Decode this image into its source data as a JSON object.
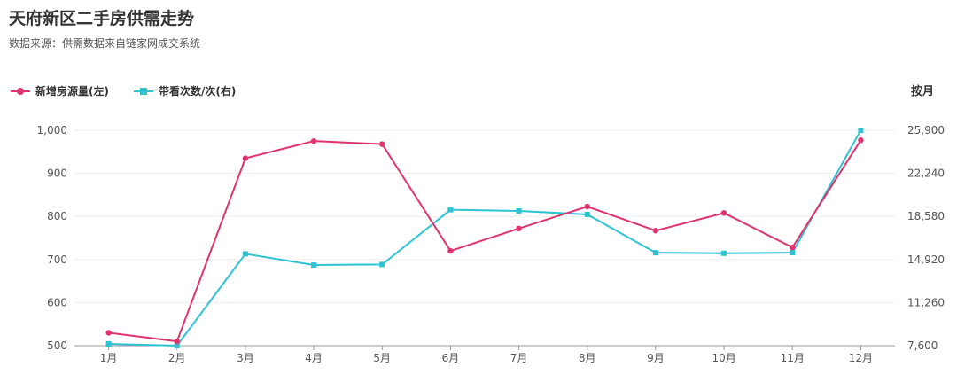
{
  "header": {
    "title": "天府新区二手房供需走势",
    "subtitle": "数据来源：供需数据来自链家网成交系统"
  },
  "period_label": "按月",
  "colors": {
    "series_new_listings": "#e0336e",
    "series_viewings": "#2ec3d3",
    "gridline": "#eeeeee",
    "axis": "#999999"
  },
  "chart_data": {
    "type": "line",
    "title": "天府新区二手房供需走势",
    "categories": [
      "1月",
      "2月",
      "3月",
      "4月",
      "5月",
      "6月",
      "7月",
      "8月",
      "9月",
      "10月",
      "11月",
      "12月"
    ],
    "series": [
      {
        "name": "新增房源量(左)",
        "axis": "left",
        "marker": "circle",
        "values": [
          530,
          510,
          935,
          975,
          968,
          720,
          772,
          823,
          767,
          808,
          728,
          977
        ]
      },
      {
        "name": "带看次数/次(右)",
        "axis": "right",
        "marker": "square",
        "values": [
          7750,
          7600,
          15400,
          14450,
          14500,
          19150,
          19050,
          18750,
          15500,
          15450,
          15500,
          25900
        ]
      }
    ],
    "y_left": {
      "min": 500,
      "max": 1000,
      "ticks": [
        "1,000",
        "900",
        "800",
        "700",
        "600",
        "500"
      ]
    },
    "y_right": {
      "min": 7600,
      "max": 25900,
      "ticks": [
        "25,900",
        "22,240",
        "18,580",
        "14,920",
        "11,260",
        "7,600"
      ]
    },
    "grid": true,
    "legend_position": "top-left"
  }
}
